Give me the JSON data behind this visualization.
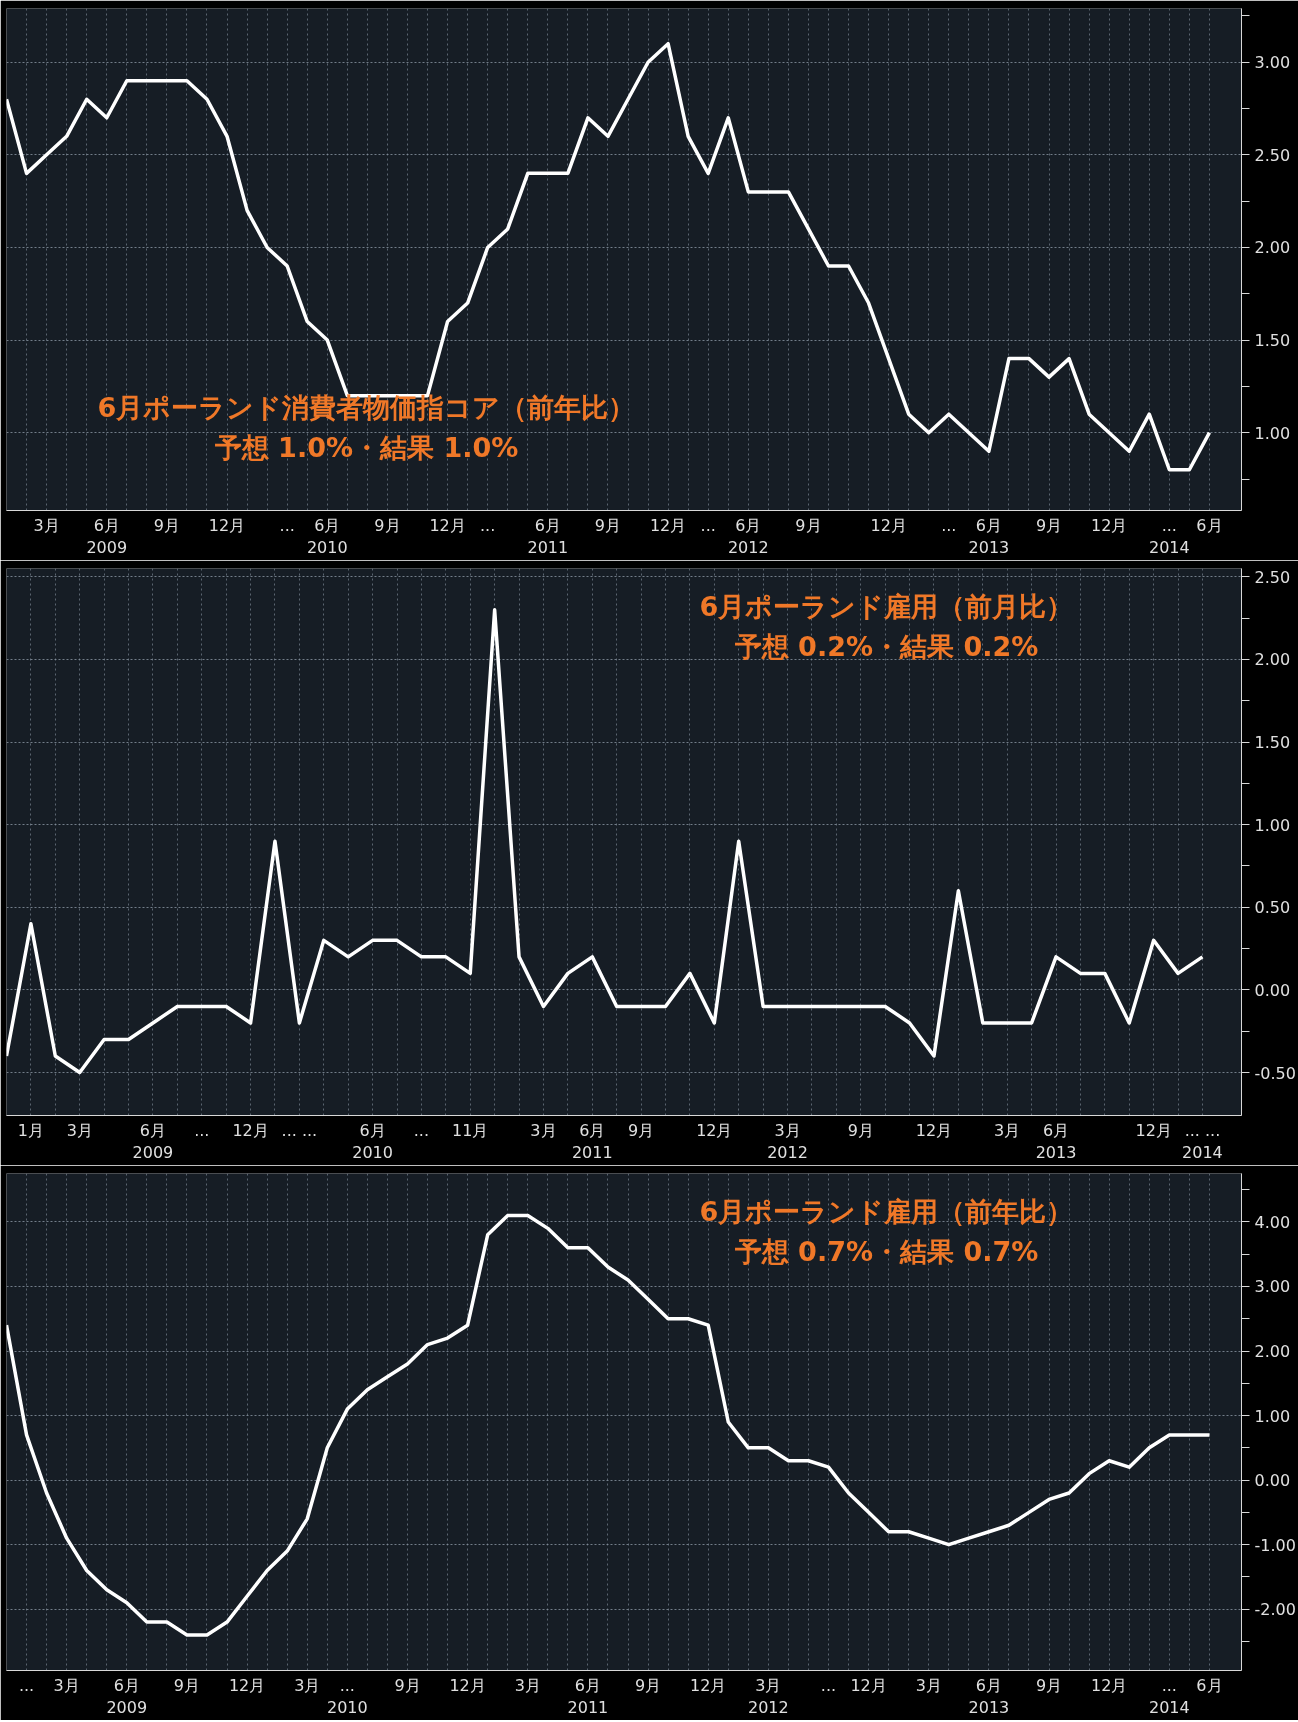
{
  "chart_data": [
    {
      "type": "line",
      "annotations": [
        "6月ポーランド消費者物価指コア（前年比）",
        "予想 1.0%・結果 1.0%"
      ],
      "categories": [
        null,
        null,
        "3月",
        null,
        null,
        "6月\n2009",
        null,
        null,
        "9月",
        null,
        null,
        "12月",
        null,
        null,
        "...",
        null,
        "6月\n2010",
        null,
        null,
        "9月",
        null,
        null,
        "12月",
        null,
        "...",
        null,
        null,
        "6月\n2011",
        null,
        null,
        "9月",
        null,
        null,
        "12月",
        null,
        "...",
        null,
        "6月\n2012",
        null,
        null,
        "9月",
        null,
        null,
        null,
        "12月",
        null,
        null,
        "...",
        null,
        "6月\n2013",
        null,
        null,
        "9月",
        null,
        null,
        "12月",
        null,
        null,
        "...\n2014",
        null,
        "6月"
      ],
      "series": [
        {
          "color": "#ffffff",
          "values": [
            2.8,
            2.4,
            2.5,
            2.6,
            2.8,
            2.7,
            2.9,
            2.9,
            2.9,
            2.9,
            2.8,
            2.6,
            2.2,
            2.0,
            1.9,
            1.6,
            1.5,
            1.2,
            1.2,
            1.2,
            1.2,
            1.2,
            1.6,
            1.7,
            2.0,
            2.1,
            2.4,
            2.4,
            2.4,
            2.7,
            2.6,
            2.8,
            3.0,
            3.1,
            2.6,
            2.4,
            2.7,
            2.3,
            2.3,
            2.3,
            2.1,
            1.9,
            1.9,
            1.7,
            1.4,
            1.1,
            1.0,
            1.1,
            1.0,
            0.9,
            1.4,
            1.4,
            1.3,
            1.4,
            1.1,
            1.0,
            0.9,
            1.1,
            0.8,
            0.8,
            1.0
          ]
        }
      ],
      "ylim": [
        0.58,
        3.29
      ],
      "yticks": [
        {
          "value": 0.75,
          "label": null
        },
        {
          "value": 1,
          "label": "1.00"
        },
        {
          "value": 1.25,
          "label": null
        },
        {
          "value": 1.5,
          "label": "1.50"
        },
        {
          "value": 1.75,
          "label": null
        },
        {
          "value": 2,
          "label": "2.00"
        },
        {
          "value": 2.25,
          "label": null
        },
        {
          "value": 2.5,
          "label": "2.50"
        },
        {
          "value": 2.75,
          "label": null
        },
        {
          "value": 3,
          "label": "3.00"
        },
        {
          "value": 3.25,
          "label": null
        }
      ],
      "grid": true
    },
    {
      "type": "line",
      "annotations": [
        "6月ポーランド雇用（前月比）",
        "予想 0.2%・結果 0.2%"
      ],
      "categories": [
        null,
        "1月",
        null,
        "3月",
        null,
        null,
        "6月\n2009",
        null,
        "...",
        null,
        "12月",
        null,
        "... ...",
        null,
        null,
        "6月\n2010",
        null,
        "...",
        null,
        "11月",
        null,
        null,
        "3月",
        null,
        "6月\n2011",
        null,
        "9月",
        null,
        null,
        "12月",
        null,
        null,
        "3月\n2012",
        null,
        null,
        "9月",
        null,
        null,
        "12月",
        null,
        null,
        "3月",
        null,
        "6月\n2013",
        null,
        null,
        null,
        "12月",
        null,
        "... ...\n2014"
      ],
      "series": [
        {
          "color": "#ffffff",
          "values": [
            -0.4,
            0.4,
            -0.4,
            -0.5,
            -0.3,
            -0.3,
            -0.2,
            -0.1,
            -0.1,
            -0.1,
            -0.2,
            0.9,
            -0.2,
            0.3,
            0.2,
            0.3,
            0.3,
            0.2,
            0.2,
            0.1,
            2.3,
            0.2,
            -0.1,
            0.1,
            0.2,
            -0.1,
            -0.1,
            -0.1,
            0.1,
            -0.2,
            0.9,
            -0.1,
            -0.1,
            -0.1,
            -0.1,
            -0.1,
            -0.1,
            -0.2,
            -0.4,
            0.6,
            -0.2,
            -0.2,
            -0.2,
            0.2,
            0.1,
            0.1,
            -0.2,
            0.3,
            0.1,
            0.2
          ]
        }
      ],
      "ylim": [
        -0.76,
        2.55
      ],
      "yticks": [
        {
          "value": -0.5,
          "label": "-0.50"
        },
        {
          "value": -0.25,
          "label": null
        },
        {
          "value": 0,
          "label": "0.00"
        },
        {
          "value": 0.25,
          "label": null
        },
        {
          "value": 0.5,
          "label": "0.50"
        },
        {
          "value": 0.75,
          "label": null
        },
        {
          "value": 1,
          "label": "1.00"
        },
        {
          "value": 1.25,
          "label": null
        },
        {
          "value": 1.5,
          "label": "1.50"
        },
        {
          "value": 1.75,
          "label": null
        },
        {
          "value": 2,
          "label": "2.00"
        },
        {
          "value": 2.25,
          "label": null
        },
        {
          "value": 2.5,
          "label": "2.50"
        }
      ],
      "grid": true
    },
    {
      "type": "line",
      "annotations": [
        "6月ポーランド雇用（前年比）",
        "予想 0.7%・結果 0.7%"
      ],
      "categories": [
        null,
        "...",
        null,
        "3月",
        null,
        null,
        "6月\n2009",
        null,
        null,
        "9月",
        null,
        null,
        "12月",
        null,
        null,
        "3月",
        null,
        "...\n2010",
        null,
        null,
        "9月",
        null,
        null,
        "12月",
        null,
        null,
        "3月",
        null,
        null,
        "6月\n2011",
        null,
        null,
        "9月",
        null,
        null,
        "12月",
        null,
        null,
        "3月\n2012",
        null,
        null,
        "...",
        null,
        "12月",
        null,
        null,
        "3月",
        null,
        null,
        "6月\n2013",
        null,
        null,
        "9月",
        null,
        null,
        "12月",
        null,
        null,
        "...\n2014",
        null,
        "6月"
      ],
      "series": [
        {
          "color": "#ffffff",
          "values": [
            2.4,
            0.7,
            -0.2,
            -0.9,
            -1.4,
            -1.7,
            -1.9,
            -2.2,
            -2.2,
            -2.4,
            -2.4,
            -2.2,
            -1.8,
            -1.4,
            -1.1,
            -0.6,
            0.5,
            1.1,
            1.4,
            1.6,
            1.8,
            2.1,
            2.2,
            2.4,
            3.8,
            4.1,
            4.1,
            3.9,
            3.6,
            3.6,
            3.3,
            3.1,
            2.8,
            2.5,
            2.5,
            2.4,
            0.9,
            0.5,
            0.5,
            0.3,
            0.3,
            0.2,
            -0.2,
            -0.5,
            -0.8,
            -0.8,
            -0.9,
            -1.0,
            -0.9,
            -0.8,
            -0.7,
            -0.5,
            -0.3,
            -0.2,
            0.1,
            0.3,
            0.2,
            0.5,
            0.7,
            0.7,
            0.7
          ]
        }
      ],
      "ylim": [
        -2.95,
        4.75
      ],
      "yticks": [
        {
          "value": -2.5,
          "label": null
        },
        {
          "value": -2,
          "label": "-2.00"
        },
        {
          "value": -1.5,
          "label": null
        },
        {
          "value": -1,
          "label": "-1.00"
        },
        {
          "value": -0.5,
          "label": null
        },
        {
          "value": 0,
          "label": "0.00"
        },
        {
          "value": 0.5,
          "label": null
        },
        {
          "value": 1,
          "label": "1.00"
        },
        {
          "value": 1.5,
          "label": null
        },
        {
          "value": 2,
          "label": "2.00"
        },
        {
          "value": 2.5,
          "label": null
        },
        {
          "value": 3,
          "label": "3.00"
        },
        {
          "value": 3.5,
          "label": null
        },
        {
          "value": 4,
          "label": "4.00"
        },
        {
          "value": 4.5,
          "label": null
        }
      ],
      "grid": true
    }
  ]
}
